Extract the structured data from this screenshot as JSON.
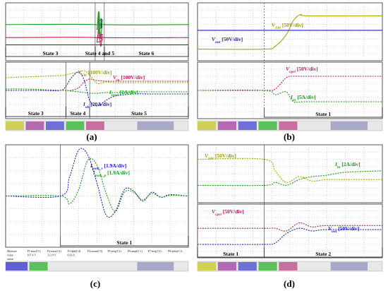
{
  "figure": {
    "panels": [
      {
        "id": "a",
        "label": "(a)",
        "upper": {
          "states": [
            {
              "text": "State 3",
              "t0": 0,
              "t1": 0.49
            },
            {
              "text": "State 4 and 5",
              "t0": 0.49,
              "t1": 0.54
            },
            {
              "text": "State 6",
              "t0": 0.54,
              "t1": 1
            }
          ]
        },
        "lower": {
          "annotations": [
            {
              "text": "V_SW [100V/div]",
              "main": "V",
              "sub": "SW",
              "rest": " [100V/div]",
              "color": "#9a9a00",
              "tx": 0.42,
              "ty": 0.18
            },
            {
              "text": "V_in [100V/div]",
              "main": "V",
              "sub": "in",
              "rest": " [100V/div]",
              "color": "#c0185a",
              "tx": 0.63,
              "ty": 0.22
            },
            {
              "text": "I_load [2A/div]",
              "main": "I",
              "sub": "load",
              "rest": " [2A/div]",
              "color": "#1b9a1b",
              "tx": 0.58,
              "ty": 0.5
            },
            {
              "text": "I_ob [20A/div]",
              "main": "I",
              "sub": "ob",
              "rest": " [20A/div]",
              "color": "#1e1ec8",
              "tx": 0.42,
              "ty": 0.78
            }
          ],
          "states": [
            {
              "text": "State 3",
              "t0": 0,
              "t1": 0.33
            },
            {
              "text": "State 4",
              "t0": 0.33,
              "t1": 0.46
            },
            {
              "text": "State 5",
              "t0": 0.46,
              "t1": 1
            }
          ]
        },
        "statusbar": "oscilloscope status bar"
      },
      {
        "id": "b",
        "label": "(b)",
        "upper": {
          "annotations": [
            {
              "text": "V_SW [50V/div]",
              "main": "V",
              "sub": "SW",
              "rest": " [50V/div]",
              "color": "#9a9a00"
            },
            {
              "text": "V_out [50V/div]",
              "main": "V",
              "sub": "out",
              "rest": " [50V/div]",
              "color": "#1e1ec8"
            }
          ]
        },
        "lower": {
          "annotations": [
            {
              "text": "V_cpri [50V/div]",
              "main": "V",
              "sub": "cpri",
              "rest": " [50V/div]",
              "color": "#c0185a"
            },
            {
              "text": "I_in [5A/div]",
              "main": "I",
              "sub": "in",
              "rest": " [5A/div]",
              "color": "#1b9a1b"
            }
          ],
          "states": [
            {
              "text": "State 1",
              "t0": 0.36,
              "t1": 1
            }
          ]
        }
      },
      {
        "id": "c",
        "label": "(c)",
        "annotations": [
          {
            "text": "I_pom_s [1.9A/div]",
            "main": "I",
            "sub": "pom_s",
            "rest": " [1.9A/div]",
            "color": "#1e1ec8"
          },
          {
            "text": "I_pom_p [1.9A/div]",
            "main": "I",
            "sub": "pom_p",
            "rest": " [1.9A/div]",
            "color": "#1b9a1b"
          }
        ],
        "states": [
          {
            "text": "State 1",
            "t0": 0.3,
            "t1": 1
          }
        ],
        "measure": {
          "rows": [
            [
              "Measure",
              "P1:max(C1)",
              "P2:max(C2)",
              "P3:dpk(C4)",
              "P4:mean(C3)",
              "P5:freq(C1)",
              "P6:ampl(C1)",
              "P7:freq(C2)",
              "P8:delta(C1)"
            ],
            [
              "value",
              "107.4 V",
              "113.9 V",
              "6.03 A",
              "",
              "",
              "",
              "",
              ""
            ],
            [
              "status",
              "",
              "",
              "",
              "",
              "",
              "",
              "",
              ""
            ]
          ]
        }
      },
      {
        "id": "d",
        "label": "(d)",
        "upper": {
          "annotations": [
            {
              "text": "V_SW [50V/div]",
              "main": "V",
              "sub": "SW",
              "rest": " [50V/div]",
              "color": "#9a9a00"
            },
            {
              "text": "I_in [2A/div]",
              "main": "I",
              "sub": "in",
              "rest": " [2A/div]",
              "color": "#1b9a1b"
            }
          ]
        },
        "lower": {
          "annotations": [
            {
              "text": "V_cpri [50V/div]",
              "main": "V",
              "sub": "cpri",
              "rest": " [50V/div]",
              "color": "#c0185a"
            },
            {
              "text": "V_out [50V/div]",
              "main": "V",
              "sub": "out",
              "rest": " [50V/div]",
              "color": "#1e1ec8"
            }
          ],
          "states": [
            {
              "text": "State 1",
              "t0": 0,
              "t1": 0.36
            },
            {
              "text": "State 2",
              "t0": 0.36,
              "t1": 1
            }
          ]
        }
      }
    ],
    "colors": {
      "yellow": "#a8a800",
      "magenta": "#c0185a",
      "green": "#1b9a1b",
      "blue": "#1e1ec8",
      "grid": "#b8b8b8",
      "frame": "#555555"
    }
  },
  "chart_data": [
    {
      "type": "line",
      "panel": "a-upper",
      "title": "",
      "xlabel": "",
      "ylabel": "",
      "x": [
        0,
        0.49,
        0.5,
        0.51,
        0.52,
        0.53,
        0.54,
        1
      ],
      "series": [
        {
          "name": "",
          "values": [
            2.5,
            2.5,
            2.2,
            3.4,
            1.6,
            2.8,
            2.5,
            2.5
          ]
        },
        {
          "name": "",
          "values": [
            1.6,
            1.6,
            1.3,
            2.2,
            1.0,
            1.8,
            1.6,
            1.6
          ]
        },
        {
          "name": "",
          "values": [
            1.1,
            1.1,
            1.1,
            1.1,
            1.1,
            1.1,
            1.1,
            1.1
          ]
        }
      ],
      "ylim": [
        0,
        4
      ],
      "grid": true
    },
    {
      "type": "line",
      "panel": "a-lower",
      "title": "",
      "xlabel": "",
      "ylabel": "",
      "x": [
        0,
        0.1,
        0.2,
        0.3,
        0.33,
        0.36,
        0.4,
        0.43,
        0.46,
        0.5,
        0.55,
        0.6,
        0.7,
        0.8,
        1
      ],
      "series": [
        {
          "name": "V_SW [100V/div]",
          "values": [
            2.9,
            2.95,
            3.0,
            3.05,
            3.1,
            3.2,
            3.3,
            3.4,
            3.1,
            2.5,
            2.6,
            2.55,
            2.55,
            2.55,
            2.55
          ]
        },
        {
          "name": "V_in [100V/div]",
          "values": [
            2.0,
            2.0,
            2.0,
            2.0,
            2.0,
            2.0,
            2.2,
            2.6,
            2.8,
            2.7,
            2.65,
            2.65,
            2.65,
            2.65,
            2.65
          ]
        },
        {
          "name": "I_load [2A/div]",
          "values": [
            2.1,
            2.1,
            2.05,
            2.0,
            2.0,
            1.95,
            1.9,
            1.85,
            1.8,
            1.8,
            1.85,
            1.85,
            1.9,
            1.9,
            1.9
          ]
        },
        {
          "name": "I_ob [20A/div]",
          "values": [
            2.0,
            2.0,
            2.0,
            2.0,
            2.3,
            2.9,
            3.3,
            2.7,
            1.3,
            0.9,
            1.3,
            1.6,
            1.75,
            1.75,
            1.75
          ]
        }
      ],
      "ylim": [
        0,
        4
      ],
      "grid": true
    },
    {
      "type": "line",
      "panel": "b-upper",
      "title": "",
      "xlabel": "",
      "ylabel": "",
      "x": [
        0,
        0.36,
        0.42,
        0.48,
        0.52,
        0.56,
        0.6,
        1
      ],
      "series": [
        {
          "name": "V_SW [50V/div]",
          "values": [
            0.8,
            0.8,
            1.0,
            1.8,
            2.8,
            3.2,
            3.1,
            3.1
          ]
        },
        {
          "name": "V_out [50V/div]",
          "values": [
            2.1,
            2.1,
            2.1,
            2.1,
            2.1,
            2.1,
            2.1,
            2.1
          ]
        }
      ],
      "ylim": [
        0,
        4
      ],
      "grid": true
    },
    {
      "type": "line",
      "panel": "b-lower",
      "title": "",
      "xlabel": "",
      "ylabel": "",
      "x": [
        0,
        0.36,
        0.42,
        0.48,
        0.52,
        0.6,
        1
      ],
      "series": [
        {
          "name": "V_cpri [50V/div]",
          "values": [
            2.0,
            2.0,
            2.1,
            2.9,
            3.0,
            3.0,
            3.0
          ]
        },
        {
          "name": "I_in [5A/div]",
          "values": [
            2.0,
            2.0,
            1.7,
            1.9,
            1.2,
            1.2,
            1.2
          ]
        }
      ],
      "ylim": [
        0,
        4
      ],
      "grid": true
    },
    {
      "type": "line",
      "panel": "c",
      "title": "",
      "xlabel": "",
      "ylabel": "",
      "x": [
        0,
        0.3,
        0.35,
        0.4,
        0.45,
        0.5,
        0.55,
        0.6,
        0.65,
        0.7,
        0.75,
        0.8,
        0.85,
        0.9,
        1
      ],
      "series": [
        {
          "name": "I_pom_s [1.9A/div]",
          "values": [
            0,
            0,
            1.5,
            3.6,
            3.2,
            1.0,
            -1.5,
            -1.2,
            0.5,
            0.4,
            -0.4,
            0.3,
            -0.1,
            0.1,
            0
          ]
        },
        {
          "name": "I_pom_p [1.9A/div]",
          "values": [
            0,
            0,
            -0.6,
            0.5,
            2.8,
            2.4,
            0.2,
            -1.2,
            0.3,
            0.3,
            -0.3,
            0.2,
            -0.1,
            0.05,
            0
          ]
        }
      ],
      "ylim": [
        -4,
        4
      ],
      "grid": true
    },
    {
      "type": "line",
      "panel": "d-upper",
      "title": "",
      "xlabel": "",
      "ylabel": "",
      "x": [
        0,
        0.36,
        0.42,
        0.48,
        0.55,
        0.62,
        0.7,
        0.8,
        1
      ],
      "series": [
        {
          "name": "V_SW [50V/div]",
          "values": [
            3.0,
            3.0,
            2.2,
            1.4,
            1.8,
            1.5,
            1.6,
            1.6,
            1.6
          ]
        },
        {
          "name": "I_in [2A/div]",
          "values": [
            1.2,
            1.2,
            1.4,
            1.2,
            1.6,
            1.8,
            1.9,
            2.1,
            2.2
          ]
        }
      ],
      "ylim": [
        0,
        4
      ],
      "grid": true
    },
    {
      "type": "line",
      "panel": "d-lower",
      "title": "",
      "xlabel": "",
      "ylabel": "",
      "x": [
        0,
        0.36,
        0.42,
        0.48,
        0.55,
        0.62,
        0.7,
        1
      ],
      "series": [
        {
          "name": "V_cpri [50V/div]",
          "values": [
            2.2,
            2.2,
            2.2,
            2.0,
            2.6,
            2.3,
            2.4,
            2.4
          ]
        },
        {
          "name": "V_out [50V/div]",
          "values": [
            1.0,
            1.0,
            1.1,
            1.8,
            2.2,
            2.0,
            2.1,
            2.1
          ]
        }
      ],
      "ylim": [
        0,
        4
      ],
      "grid": true
    }
  ]
}
